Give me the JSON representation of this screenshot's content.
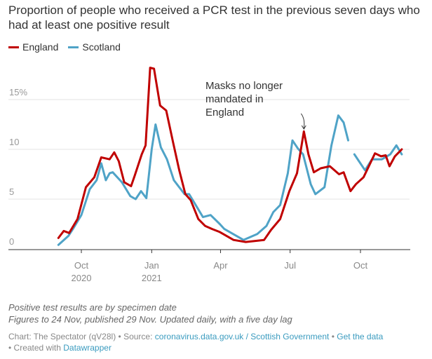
{
  "title": "Proportion of people who received a PCR test in the previous seven days who had at least one positive result",
  "notes": [
    "Positive test results are by specimen date",
    "Figures to 24 Nov, published 29 Nov. Updated daily, with a five day lag"
  ],
  "credit": {
    "chart": "Chart: The Spectator (qV28l)",
    "source_label": "• Source:",
    "source_link": "coronavirus.data.gov.uk / Scottish Government",
    "get_data": "Get the data",
    "created": "• Created with",
    "datawrapper": "Datawrapper",
    "sep": "•"
  },
  "chart_data": {
    "type": "line",
    "title": "Proportion of people who received a PCR test in the previous seven days who had at least one positive result",
    "ylim": [
      0,
      18.5
    ],
    "yticks": [
      {
        "value": 0,
        "label": "0"
      },
      {
        "value": 5,
        "label": "5"
      },
      {
        "value": 10,
        "label": "10"
      },
      {
        "value": 15,
        "label": "15%"
      }
    ],
    "xticks": [
      {
        "date": "2020-10-01",
        "label": "Oct",
        "label2": "2020"
      },
      {
        "date": "2021-01-01",
        "label": "Jan",
        "label2": "2021"
      },
      {
        "date": "2021-04-01",
        "label": "Apr",
        "label2": ""
      },
      {
        "date": "2021-07-01",
        "label": "Jul",
        "label2": ""
      },
      {
        "date": "2021-10-01",
        "label": "Oct",
        "label2": ""
      }
    ],
    "grid": true,
    "legend_position": "top-left",
    "annotation": {
      "text": [
        "Masks no longer",
        "mandated in",
        "England"
      ],
      "date": "2021-07-19"
    },
    "series": [
      {
        "name": "England",
        "color": "#c00000",
        "points": [
          [
            "2020-09-01",
            1.1
          ],
          [
            "2020-09-08",
            1.8
          ],
          [
            "2020-09-15",
            1.6
          ],
          [
            "2020-09-26",
            3.0
          ],
          [
            "2020-10-07",
            6.2
          ],
          [
            "2020-10-18",
            7.2
          ],
          [
            "2020-10-27",
            9.2
          ],
          [
            "2020-11-07",
            9.0
          ],
          [
            "2020-11-13",
            9.7
          ],
          [
            "2020-11-19",
            8.8
          ],
          [
            "2020-11-26",
            6.7
          ],
          [
            "2020-12-05",
            6.3
          ],
          [
            "2020-12-10",
            7.4
          ],
          [
            "2020-12-19",
            9.5
          ],
          [
            "2020-12-24",
            10.4
          ],
          [
            "2020-12-30",
            18.2
          ],
          [
            "2021-01-04",
            18.1
          ],
          [
            "2021-01-12",
            14.4
          ],
          [
            "2021-01-20",
            13.9
          ],
          [
            "2021-01-29",
            10.7
          ],
          [
            "2021-02-06",
            7.9
          ],
          [
            "2021-02-14",
            5.5
          ],
          [
            "2021-02-21",
            4.9
          ],
          [
            "2021-03-03",
            3.0
          ],
          [
            "2021-03-12",
            2.3
          ],
          [
            "2021-03-21",
            2.0
          ],
          [
            "2021-03-31",
            1.7
          ],
          [
            "2021-04-18",
            0.9
          ],
          [
            "2021-05-04",
            0.7
          ],
          [
            "2021-05-28",
            0.9
          ],
          [
            "2021-06-06",
            1.9
          ],
          [
            "2021-06-18",
            3.0
          ],
          [
            "2021-06-30",
            5.8
          ],
          [
            "2021-07-10",
            7.6
          ],
          [
            "2021-07-19",
            11.8
          ],
          [
            "2021-07-25",
            9.5
          ],
          [
            "2021-08-01",
            7.7
          ],
          [
            "2021-08-10",
            8.1
          ],
          [
            "2021-08-22",
            8.3
          ],
          [
            "2021-09-03",
            7.5
          ],
          [
            "2021-09-09",
            7.7
          ],
          [
            "2021-09-18",
            5.8
          ],
          [
            "2021-09-25",
            6.5
          ],
          [
            "2021-10-05",
            7.2
          ],
          [
            "2021-10-20",
            9.6
          ],
          [
            "2021-10-28",
            9.3
          ],
          [
            "2021-11-03",
            9.4
          ],
          [
            "2021-11-08",
            8.3
          ],
          [
            "2021-11-15",
            9.3
          ],
          [
            "2021-11-24",
            10.0
          ]
        ]
      },
      {
        "name": "Scotland",
        "color": "#4fa3c7",
        "points": [
          [
            "2020-09-01",
            0.4
          ],
          [
            "2020-09-14",
            1.3
          ],
          [
            "2020-09-20",
            2.0
          ],
          [
            "2020-10-01",
            3.4
          ],
          [
            "2020-10-12",
            6.0
          ],
          [
            "2020-10-21",
            6.9
          ],
          [
            "2020-10-27",
            8.6
          ],
          [
            "2020-11-02",
            6.9
          ],
          [
            "2020-11-07",
            7.6
          ],
          [
            "2020-11-11",
            7.7
          ],
          [
            "2020-11-23",
            6.7
          ],
          [
            "2020-12-04",
            5.3
          ],
          [
            "2020-12-11",
            5.0
          ],
          [
            "2020-12-18",
            5.8
          ],
          [
            "2020-12-25",
            5.1
          ],
          [
            "2021-01-01",
            10.0
          ],
          [
            "2021-01-06",
            12.5
          ],
          [
            "2021-01-13",
            10.2
          ],
          [
            "2021-01-21",
            9.0
          ],
          [
            "2021-01-30",
            6.9
          ],
          [
            "2021-02-13",
            5.5
          ],
          [
            "2021-02-19",
            5.5
          ],
          [
            "2021-03-02",
            4.1
          ],
          [
            "2021-03-09",
            3.2
          ],
          [
            "2021-03-19",
            3.4
          ],
          [
            "2021-03-31",
            2.5
          ],
          [
            "2021-04-06",
            2.0
          ],
          [
            "2021-05-01",
            0.9
          ],
          [
            "2021-05-19",
            1.5
          ],
          [
            "2021-05-31",
            2.3
          ],
          [
            "2021-06-09",
            3.7
          ],
          [
            "2021-06-18",
            4.4
          ],
          [
            "2021-06-28",
            7.6
          ],
          [
            "2021-07-04",
            10.9
          ],
          [
            "2021-07-11",
            10.1
          ],
          [
            "2021-07-18",
            9.5
          ],
          [
            "2021-07-28",
            6.5
          ],
          [
            "2021-08-03",
            5.5
          ],
          [
            "2021-08-15",
            6.2
          ],
          [
            "2021-08-24",
            10.4
          ],
          [
            "2021-09-02",
            13.4
          ],
          [
            "2021-09-09",
            12.7
          ],
          [
            "2021-09-15",
            10.9
          ],
          null,
          [
            "2021-09-23",
            9.5
          ],
          [
            "2021-10-07",
            7.9
          ],
          [
            "2021-10-16",
            9.0
          ],
          [
            "2021-10-29",
            9.0
          ],
          [
            "2021-11-09",
            9.5
          ],
          [
            "2021-11-17",
            10.4
          ],
          [
            "2021-11-24",
            9.5
          ]
        ]
      }
    ]
  }
}
